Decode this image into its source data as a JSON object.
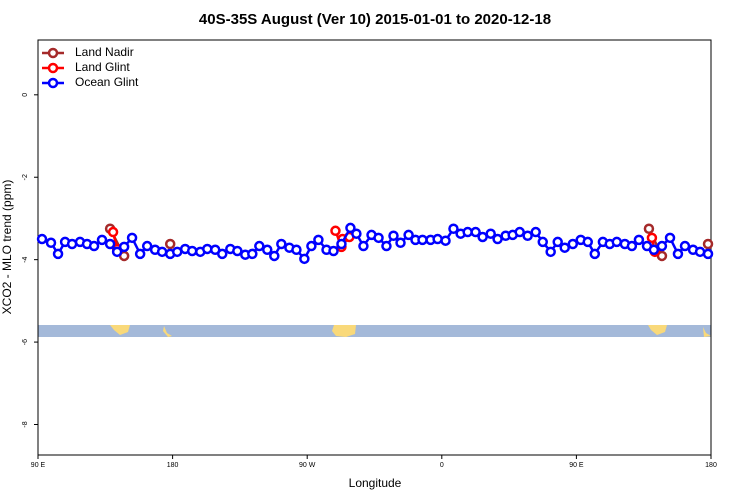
{
  "chart_data": {
    "type": "line",
    "title": "40S-35S August (Ver 10)   2015-01-01 to 2020-12-18",
    "x_label": "Longitude",
    "y_label": "XCO2 - MLO trend (ppm)",
    "xlim": [
      90,
      540
    ],
    "xticks": [
      {
        "value": 90,
        "label": "90 E"
      },
      180,
      {
        "value": 270,
        "label": "90 W"
      },
      {
        "value": 360,
        "label": "0"
      },
      {
        "value": 450,
        "label": "90 E"
      },
      {
        "value": 540,
        "label": "180"
      }
    ],
    "ylim": [
      -8.74,
      1.33
    ],
    "yticks": [
      0,
      -2,
      -4,
      -6,
      -8
    ],
    "legend": "top-left",
    "series": [
      {
        "name": "Land Nadir",
        "color": "#a52a2a",
        "x": [
          138.2,
          147.6,
          null,
          178.4,
          null,
          498.5,
          507.2,
          null,
          538.0
        ],
        "values": [
          -3.25,
          -3.91,
          null,
          -3.62,
          null,
          -3.25,
          -3.91,
          null,
          -3.62
        ]
      },
      {
        "name": "Land Glint",
        "color": "#ff0000",
        "x": [
          140.2,
          142.9,
          null,
          288.9,
          292.9,
          293.6,
          298.2,
          null,
          500.5,
          502.5
        ],
        "values": [
          -3.33,
          -3.74,
          null,
          -3.3,
          -3.69,
          -3.5,
          -3.45,
          null,
          -3.47,
          -3.81
        ]
      },
      {
        "name": "Ocean Glint",
        "color": "#0000ff",
        "x": [
          92.7,
          98.7,
          103.4,
          108.1,
          112.8,
          118.1,
          122.8,
          127.5,
          132.8,
          138.2,
          142.9,
          147.6,
          152.9,
          158.3,
          163.0,
          168.3,
          173.0,
          178.4,
          183.1,
          188.4,
          193.1,
          198.5,
          203.2,
          208.5,
          213.2,
          218.6,
          223.3,
          228.6,
          233.3,
          238.0,
          243.3,
          248.0,
          252.7,
          258.1,
          262.8,
          268.1,
          272.8,
          277.5,
          282.9,
          287.6,
          292.9,
          298.9,
          302.9,
          307.6,
          313.0,
          317.7,
          323.0,
          327.7,
          332.4,
          337.8,
          342.4,
          347.1,
          352.5,
          357.2,
          362.5,
          367.8,
          372.6,
          377.3,
          382.6,
          387.3,
          392.7,
          397.3,
          402.7,
          407.4,
          412.1,
          417.4,
          422.8,
          427.5,
          432.8,
          437.5,
          442.2,
          447.6,
          452.9,
          457.6,
          462.3,
          467.7,
          472.3,
          477.0,
          482.4,
          487.1,
          491.8,
          497.2,
          501.8,
          507.2,
          512.6,
          517.9,
          522.6,
          528.0,
          532.7,
          538.0
        ],
        "values": [
          -3.5,
          -3.59,
          -3.86,
          -3.57,
          -3.62,
          -3.57,
          -3.62,
          -3.67,
          -3.52,
          -3.62,
          -3.81,
          -3.69,
          -3.47,
          -3.86,
          -3.67,
          -3.76,
          -3.81,
          -3.86,
          -3.81,
          -3.74,
          -3.79,
          -3.81,
          -3.74,
          -3.76,
          -3.86,
          -3.74,
          -3.79,
          -3.88,
          -3.86,
          -3.67,
          -3.76,
          -3.91,
          -3.62,
          -3.71,
          -3.76,
          -3.98,
          -3.67,
          -3.52,
          -3.76,
          -3.79,
          -3.62,
          -3.23,
          -3.37,
          -3.67,
          -3.4,
          -3.47,
          -3.67,
          -3.42,
          -3.59,
          -3.4,
          -3.52,
          -3.52,
          -3.52,
          -3.5,
          -3.54,
          -3.25,
          -3.37,
          -3.33,
          -3.33,
          -3.45,
          -3.37,
          -3.5,
          -3.42,
          -3.4,
          -3.33,
          -3.42,
          -3.33,
          -3.57,
          -3.81,
          -3.57,
          -3.71,
          -3.62,
          -3.52,
          -3.57,
          -3.86,
          -3.57,
          -3.62,
          -3.57,
          -3.62,
          -3.67,
          -3.52,
          -3.67,
          -3.76,
          -3.67,
          -3.47,
          -3.86,
          -3.67,
          -3.76,
          -3.81,
          -3.86
        ]
      }
    ]
  }
}
